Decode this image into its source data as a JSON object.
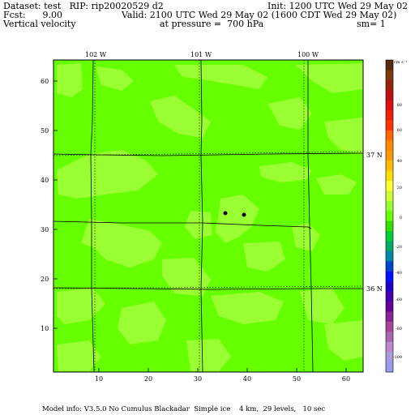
{
  "header": {
    "line1_left": "Dataset: test   RIP: rip20020529 d2",
    "line1_right": "Init: 1200 UTC Wed 29 May 02",
    "line2_left": "Fcst:      9.00",
    "line2_right": "Valid: 2100 UTC Wed 29 May 02 (1600 CDT Wed 29 May 02)",
    "line3_left": "Vertical velocity",
    "line3_mid": "at pressure =  700 hPa",
    "line3_right": "sm= 1"
  },
  "map": {
    "y_ticks": [
      "60",
      "50",
      "40",
      "30",
      "20",
      "10"
    ],
    "x_ticks": [
      "10",
      "20",
      "30",
      "40",
      "50",
      "60"
    ],
    "lon_labels": [
      "102 W",
      "101 W",
      "100 W"
    ],
    "lat_labels": [
      "37 N",
      "36 N"
    ],
    "colors": {
      "background": "#66ff00",
      "patch": "#99ff33",
      "dark": "#00cc33"
    }
  },
  "colorbar": {
    "unit": "cm s⁻¹",
    "labels": [
      "80",
      "60",
      "40",
      "20",
      "0",
      "-20",
      "-40",
      "-60",
      "-80",
      "-100"
    ],
    "colors": [
      "#5a2a0a",
      "#7a3a0a",
      "#99220a",
      "#bb1111",
      "#dd1111",
      "#ee2200",
      "#ff3300",
      "#ff6600",
      "#ff8800",
      "#ff9900",
      "#ffbb00",
      "#ffdd00",
      "#ffff33",
      "#ccff33",
      "#99ff33",
      "#66ff00",
      "#33dd00",
      "#00cc33",
      "#00aa66",
      "#0088aa",
      "#0044cc",
      "#0011ff",
      "#2200cc",
      "#4400aa",
      "#660099",
      "#882299",
      "#aa4499",
      "#aa66aa",
      "#bb88cc",
      "#aa99dd",
      "#9999ee"
    ]
  },
  "footer": "Model info: V3.5.0 No Cumulus Blackadar  Simple ice    4 km,  29 levels,   10 sec"
}
